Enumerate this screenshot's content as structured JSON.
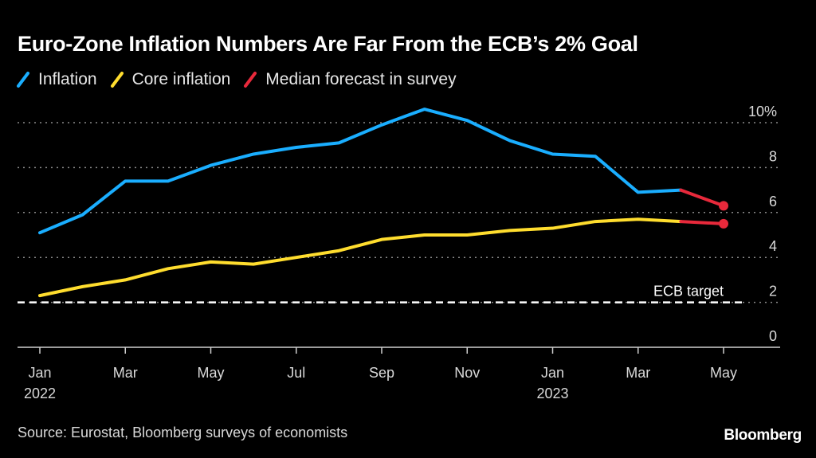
{
  "chart_data": {
    "type": "line",
    "title": "Euro-Zone Inflation Numbers Are Far From the ECB’s 2% Goal",
    "xlabel": "",
    "ylabel": "",
    "ylim": [
      0,
      10
    ],
    "y_ticks": [
      0,
      2,
      4,
      6,
      8,
      10
    ],
    "y_tick_labels": [
      "0",
      "2",
      "4",
      "6",
      "8",
      "10%"
    ],
    "grid": true,
    "legend_position": "top-left",
    "x": [
      "2022-01",
      "2022-02",
      "2022-03",
      "2022-04",
      "2022-05",
      "2022-06",
      "2022-07",
      "2022-08",
      "2022-09",
      "2022-10",
      "2022-11",
      "2022-12",
      "2023-01",
      "2023-02",
      "2023-03",
      "2023-04",
      "2023-05"
    ],
    "x_ticks": [
      {
        "index": 0,
        "label": "Jan",
        "sublabel": "2022"
      },
      {
        "index": 2,
        "label": "Mar",
        "sublabel": ""
      },
      {
        "index": 4,
        "label": "May",
        "sublabel": ""
      },
      {
        "index": 6,
        "label": "Jul",
        "sublabel": ""
      },
      {
        "index": 8,
        "label": "Sep",
        "sublabel": ""
      },
      {
        "index": 10,
        "label": "Nov",
        "sublabel": ""
      },
      {
        "index": 12,
        "label": "Jan",
        "sublabel": "2023"
      },
      {
        "index": 14,
        "label": "Mar",
        "sublabel": ""
      },
      {
        "index": 16,
        "label": "May",
        "sublabel": ""
      }
    ],
    "series": [
      {
        "name": "Inflation",
        "color": "#1aaeff",
        "values": [
          5.1,
          5.9,
          7.4,
          7.4,
          8.1,
          8.6,
          8.9,
          9.1,
          9.9,
          10.6,
          10.1,
          9.2,
          8.6,
          8.5,
          6.9,
          7.0,
          null
        ]
      },
      {
        "name": "Core inflation",
        "color": "#ffdd2e",
        "values": [
          2.3,
          2.7,
          3.0,
          3.5,
          3.8,
          3.7,
          4.0,
          4.3,
          4.8,
          5.0,
          5.0,
          5.2,
          5.3,
          5.6,
          5.7,
          5.6,
          null
        ]
      },
      {
        "name": "Median forecast in survey",
        "color": "#e8293b",
        "segments": [
          {
            "of": "Inflation",
            "values": [
              {
                "x": "2023-04",
                "y": 7.0
              },
              {
                "x": "2023-05",
                "y": 6.3
              }
            ]
          },
          {
            "of": "Core inflation",
            "values": [
              {
                "x": "2023-04",
                "y": 5.6
              },
              {
                "x": "2023-05",
                "y": 5.5
              }
            ]
          }
        ]
      }
    ],
    "annotations": [
      {
        "text": "ECB target",
        "type": "reference-line",
        "y": 2
      }
    ]
  },
  "legend": [
    {
      "label": "Inflation",
      "color": "#1aaeff"
    },
    {
      "label": "Core inflation",
      "color": "#ffdd2e"
    },
    {
      "label": "Median forecast in survey",
      "color": "#e8293b"
    }
  ],
  "source": "Source: Eurostat, Bloomberg surveys of economists",
  "brand": "Bloomberg"
}
